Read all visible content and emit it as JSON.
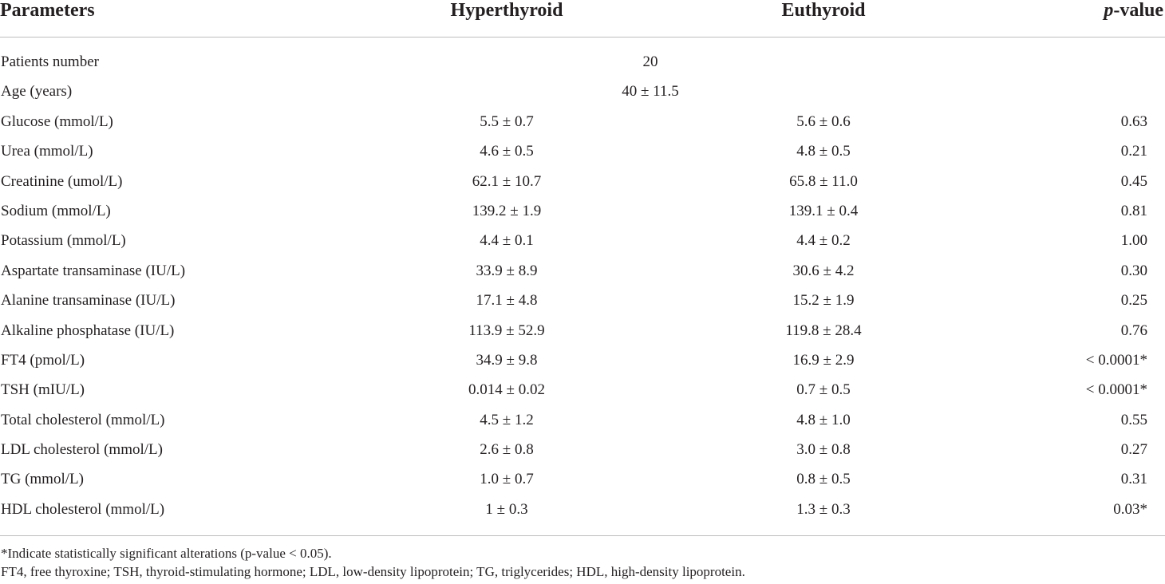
{
  "table": {
    "headers": {
      "parameters": "Parameters",
      "hyperthyroid": "Hyperthyroid",
      "euthyroid": "Euthyroid",
      "p_value_italic": "p",
      "p_value_rest": "-value"
    },
    "merged_rows": [
      {
        "param": "Patients number",
        "value": "20"
      },
      {
        "param": "Age (years)",
        "value": "40 ± 11.5"
      }
    ],
    "rows": [
      {
        "param": "Glucose (mmol/L)",
        "hyper": "5.5 ± 0.7",
        "eu": "5.6 ± 0.6",
        "p": "0.63"
      },
      {
        "param": "Urea (mmol/L)",
        "hyper": "4.6 ± 0.5",
        "eu": "4.8 ± 0.5",
        "p": "0.21"
      },
      {
        "param": "Creatinine (umol/L)",
        "hyper": "62.1 ± 10.7",
        "eu": "65.8 ± 11.0",
        "p": "0.45"
      },
      {
        "param": "Sodium (mmol/L)",
        "hyper": "139.2 ± 1.9",
        "eu": "139.1 ± 0.4",
        "p": "0.81"
      },
      {
        "param": "Potassium (mmol/L)",
        "hyper": "4.4 ± 0.1",
        "eu": "4.4 ± 0.2",
        "p": "1.00"
      },
      {
        "param": "Aspartate transaminase (IU/L)",
        "hyper": "33.9 ± 8.9",
        "eu": "30.6 ± 4.2",
        "p": "0.30"
      },
      {
        "param": "Alanine transaminase (IU/L)",
        "hyper": "17.1 ± 4.8",
        "eu": "15.2 ± 1.9",
        "p": "0.25"
      },
      {
        "param": "Alkaline phosphatase (IU/L)",
        "hyper": "113.9 ± 52.9",
        "eu": "119.8 ± 28.4",
        "p": "0.76"
      },
      {
        "param": "FT4 (pmol/L)",
        "hyper": "34.9 ± 9.8",
        "eu": "16.9 ± 2.9",
        "p": "< 0.0001*"
      },
      {
        "param": "TSH (mIU/L)",
        "hyper": "0.014 ± 0.02",
        "eu": "0.7 ± 0.5",
        "p": "< 0.0001*"
      },
      {
        "param": "Total cholesterol (mmol/L)",
        "hyper": "4.5 ± 1.2",
        "eu": "4.8 ± 1.0",
        "p": "0.55"
      },
      {
        "param": "LDL cholesterol (mmol/L)",
        "hyper": "2.6 ± 0.8",
        "eu": "3.0 ± 0.8",
        "p": "0.27"
      },
      {
        "param": "TG (mmol/L)",
        "hyper": "1.0 ± 0.7",
        "eu": "0.8 ± 0.5",
        "p": "0.31"
      },
      {
        "param": "HDL cholesterol (mmol/L)",
        "hyper": "1 ± 0.3",
        "eu": "1.3 ± 0.3",
        "p": "0.03*"
      }
    ]
  },
  "footnotes": [
    "*Indicate statistically significant alterations (p-value < 0.05).",
    "FT4, free thyroxine; TSH, thyroid-stimulating hormone; LDL, low-density lipoprotein; TG, triglycerides; HDL, high-density lipoprotein."
  ]
}
